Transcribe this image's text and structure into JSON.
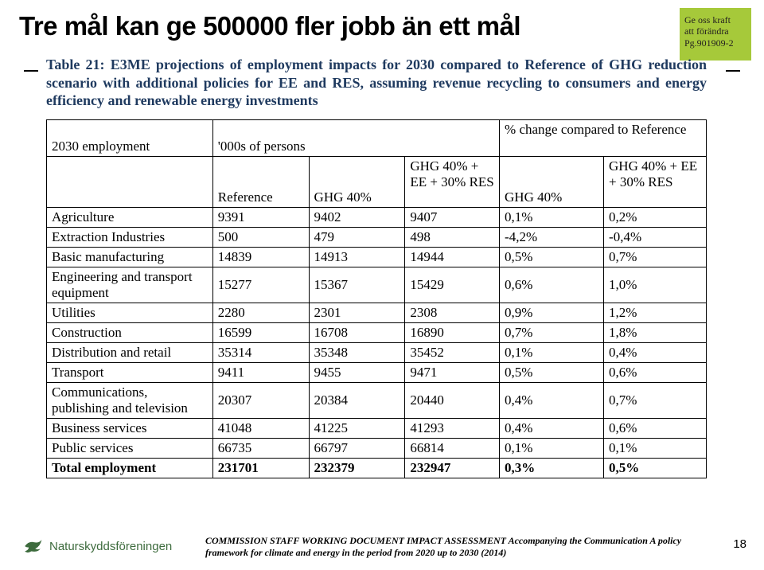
{
  "title": "Tre mål kan ge 500000 fler jobb än ett mål",
  "logo": {
    "line1": "Ge oss kraft",
    "line2": "att förändra",
    "line3": "Pg.901909-2"
  },
  "caption": "Table 21: E3ME projections of employment impacts for 2030 compared to Reference of GHG reduction scenario with additional policies for EE and RES, assuming revenue recycling to consumers and energy efficiency and renewable energy investments",
  "header": {
    "row1_label": "2030 employment",
    "row1_absolute": "'000s of persons",
    "row1_relative": "% change compared to Reference",
    "col_ref": "Reference",
    "col_ghg": "GHG 40%",
    "col_combo": "GHG 40% + EE + 30% RES"
  },
  "rows": [
    {
      "sector": "Agriculture",
      "ref": "9391",
      "g40": "9402",
      "gcomb": "9407",
      "p40": "0,1%",
      "pcomb": "0,2%"
    },
    {
      "sector": "Extraction Industries",
      "ref": "500",
      "g40": "479",
      "gcomb": "498",
      "p40": "-4,2%",
      "pcomb": "-0,4%"
    },
    {
      "sector": "Basic manufacturing",
      "ref": "14839",
      "g40": "14913",
      "gcomb": "14944",
      "p40": "0,5%",
      "pcomb": "0,7%"
    },
    {
      "sector": "Engineering and transport equipment",
      "ref": "15277",
      "g40": "15367",
      "gcomb": "15429",
      "p40": "0,6%",
      "pcomb": "1,0%"
    },
    {
      "sector": "Utilities",
      "ref": "2280",
      "g40": "2301",
      "gcomb": "2308",
      "p40": "0,9%",
      "pcomb": "1,2%"
    },
    {
      "sector": "Construction",
      "ref": "16599",
      "g40": "16708",
      "gcomb": "16890",
      "p40": "0,7%",
      "pcomb": "1,8%"
    },
    {
      "sector": "Distribution and retail",
      "ref": "35314",
      "g40": "35348",
      "gcomb": "35452",
      "p40": "0,1%",
      "pcomb": "0,4%"
    },
    {
      "sector": "Transport",
      "ref": "9411",
      "g40": "9455",
      "gcomb": "9471",
      "p40": "0,5%",
      "pcomb": "0,6%"
    },
    {
      "sector": "Communications, publishing and television",
      "ref": "20307",
      "g40": "20384",
      "gcomb": "20440",
      "p40": "0,4%",
      "pcomb": "0,7%"
    },
    {
      "sector": "Business services",
      "ref": "41048",
      "g40": "41225",
      "gcomb": "41293",
      "p40": "0,4%",
      "pcomb": "0,6%"
    },
    {
      "sector": "Public services",
      "ref": "66735",
      "g40": "66797",
      "gcomb": "66814",
      "p40": "0,1%",
      "pcomb": "0,1%"
    }
  ],
  "total": {
    "sector": "Total employment",
    "ref": "231701",
    "g40": "232379",
    "gcomb": "232947",
    "p40": "0,3%",
    "pcomb": "0,5%"
  },
  "footer": {
    "org": "Naturskyddsföreningen",
    "citation": "COMMISSION STAFF WORKING DOCUMENT IMPACT ASSESSMENT Accompanying the Communication A policy framework for climate and energy in the period from 2020 up to 2030 (2014)",
    "page": "18"
  },
  "style": {
    "brand_green": "#a6c93a",
    "caption_color": "#1f3a5f",
    "footer_logo_color": "#3d6b3d"
  }
}
